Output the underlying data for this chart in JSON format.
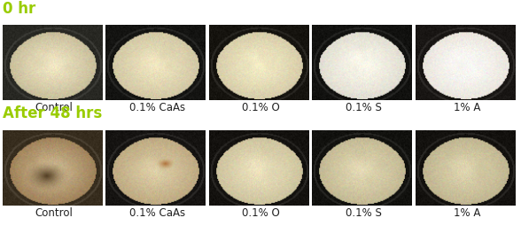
{
  "title_row1": "0 hr",
  "title_row2": "After 48 hrs",
  "title_color": "#99cc00",
  "labels": [
    "Control",
    "0.1% CaAs",
    "0.1% O",
    "0.1% S",
    "1% A"
  ],
  "label_fontsize": 8.5,
  "title_fontsize": 12,
  "background_color": "#ffffff",
  "row1": [
    {
      "bg": [
        40,
        40,
        35
      ],
      "slice": [
        230,
        220,
        185
      ],
      "tint": [
        200,
        190,
        155
      ],
      "dark_spot": null,
      "brown_spot": null
    },
    {
      "bg": [
        20,
        20,
        18
      ],
      "slice": [
        228,
        218,
        180
      ],
      "tint": [
        210,
        200,
        165
      ],
      "dark_spot": null,
      "brown_spot": null
    },
    {
      "bg": [
        22,
        20,
        15
      ],
      "slice": [
        232,
        225,
        185
      ],
      "tint": [
        215,
        205,
        170
      ],
      "dark_spot": null,
      "brown_spot": null
    },
    {
      "bg": [
        18,
        18,
        16
      ],
      "slice": [
        240,
        238,
        225
      ],
      "tint": [
        225,
        222,
        210
      ],
      "dark_spot": null,
      "brown_spot": null
    },
    {
      "bg": [
        25,
        22,
        20
      ],
      "slice": [
        245,
        242,
        238
      ],
      "tint": [
        235,
        230,
        222
      ],
      "dark_spot": null,
      "brown_spot": null
    }
  ],
  "row2": [
    {
      "bg": [
        55,
        45,
        30
      ],
      "slice": [
        195,
        175,
        135
      ],
      "tint": [
        160,
        130,
        90
      ],
      "dark_spot": [
        0.42,
        0.58,
        0.22,
        0.2
      ],
      "brown_spot": null
    },
    {
      "bg": [
        22,
        20,
        18
      ],
      "slice": [
        210,
        195,
        155
      ],
      "tint": [
        190,
        170,
        130
      ],
      "dark_spot": null,
      "brown_spot": [
        0.62,
        0.38,
        0.1,
        0.08
      ]
    },
    {
      "bg": [
        20,
        18,
        15
      ],
      "slice": [
        225,
        215,
        178
      ],
      "tint": [
        205,
        195,
        158
      ],
      "dark_spot": null,
      "brown_spot": null
    },
    {
      "bg": [
        18,
        18,
        15
      ],
      "slice": [
        215,
        205,
        168
      ],
      "tint": [
        195,
        185,
        148
      ],
      "dark_spot": null,
      "brown_spot": null
    },
    {
      "bg": [
        20,
        18,
        15
      ],
      "slice": [
        210,
        200,
        162
      ],
      "tint": [
        192,
        182,
        145
      ],
      "dark_spot": null,
      "brown_spot": null
    }
  ]
}
